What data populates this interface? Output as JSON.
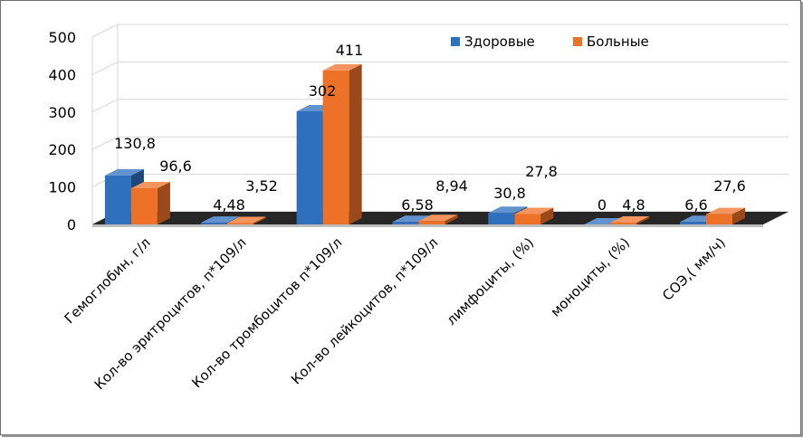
{
  "chart_data": {
    "type": "bar",
    "categories": [
      "Гемоглобин, г/л",
      "Кол-во эритроцитов, п*109/л",
      "Кол-во тромбоцитов п*109/л",
      "Кол-во лейкоцитов, п*109/л",
      "лимфоциты, (%)",
      "моноциты, (%)",
      "СОЭ,( мм/ч)"
    ],
    "series": [
      {
        "name": "Здоровые",
        "values": [
          130.8,
          4.48,
          302,
          6.58,
          30.8,
          0,
          6.6
        ],
        "labels": [
          "130,8",
          "4,48",
          "302",
          "6,58",
          "30,8",
          "0",
          "6,6"
        ],
        "color": "#2e6fbe"
      },
      {
        "name": "Больные",
        "values": [
          96.6,
          3.52,
          411,
          8.94,
          27.8,
          4.8,
          27.6
        ],
        "labels": [
          "96,6",
          "3,52",
          "411",
          "8,94",
          "27,8",
          "4,8",
          "27,6"
        ],
        "color": "#ee7128"
      }
    ],
    "yticks": [
      0,
      100,
      200,
      300,
      400,
      500
    ],
    "ylim": [
      0,
      500
    ],
    "grid": true,
    "legend_position": "top-right",
    "title": "",
    "xlabel": "",
    "ylabel": ""
  }
}
